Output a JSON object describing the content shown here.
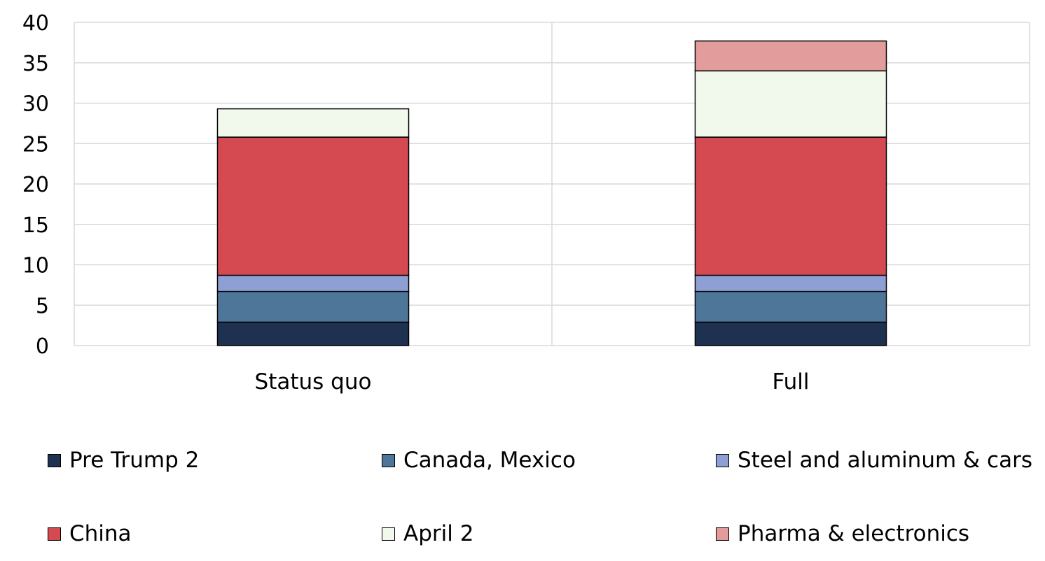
{
  "chart_data": {
    "type": "bar",
    "stacked": true,
    "categories": [
      "Status quo",
      "Full"
    ],
    "series": [
      {
        "name": "Pre Trump 2",
        "color": "#1f3150",
        "values": [
          2.9,
          2.9
        ]
      },
      {
        "name": "Canada, Mexico",
        "color": "#4e7699",
        "values": [
          3.8,
          3.8
        ]
      },
      {
        "name": "Steel and aluminum & cars",
        "color": "#8e9fd3",
        "values": [
          2.0,
          2.0
        ]
      },
      {
        "name": "China",
        "color": "#d44a50",
        "values": [
          17.1,
          17.1
        ]
      },
      {
        "name": "April 2",
        "color": "#f1f8ec",
        "values": [
          3.5,
          8.2
        ]
      },
      {
        "name": "Pharma & electronics",
        "color": "#e39c9c",
        "values": [
          0,
          3.7
        ]
      }
    ],
    "title": "",
    "xlabel": "",
    "ylabel": "",
    "ylim": [
      0,
      40
    ],
    "yticks": [
      "0",
      "5",
      "10",
      "15",
      "20",
      "25",
      "30",
      "35",
      "40"
    ],
    "grid": true,
    "legend_position": "bottom"
  }
}
